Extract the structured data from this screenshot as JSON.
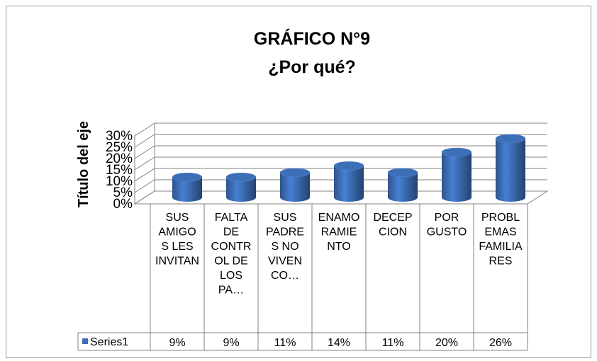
{
  "chart_data": {
    "type": "bar3d",
    "title": "GRÁFICO N°9",
    "subtitle": "¿Por qué?",
    "y_axis_label": "Título del eje",
    "categories": [
      "SUS AMIGOS LES INVITAN",
      "FALTA DE CONTROL DE LOS PA…",
      "SUS PADRES NO VIVEN CO…",
      "ENAMORAMIENTO",
      "DECEPCION",
      "POR GUSTO",
      "PROBLEMAS FAMILIARES"
    ],
    "series": [
      {
        "name": "Series1",
        "color": "#3d6fb8",
        "values": [
          9,
          9,
          11,
          14,
          11,
          20,
          26
        ],
        "value_labels": [
          "9%",
          "9%",
          "11%",
          "14%",
          "11%",
          "20%",
          "26%"
        ]
      }
    ],
    "ylim": [
      0,
      30
    ],
    "yticks": [
      {
        "value": 0,
        "label": "0%"
      },
      {
        "value": 5,
        "label": "5%"
      },
      {
        "value": 10,
        "label": "10%"
      },
      {
        "value": 15,
        "label": "15%"
      },
      {
        "value": 20,
        "label": "20%"
      },
      {
        "value": 25,
        "label": "25%"
      },
      {
        "value": 30,
        "label": "30%"
      }
    ],
    "grid": true
  }
}
